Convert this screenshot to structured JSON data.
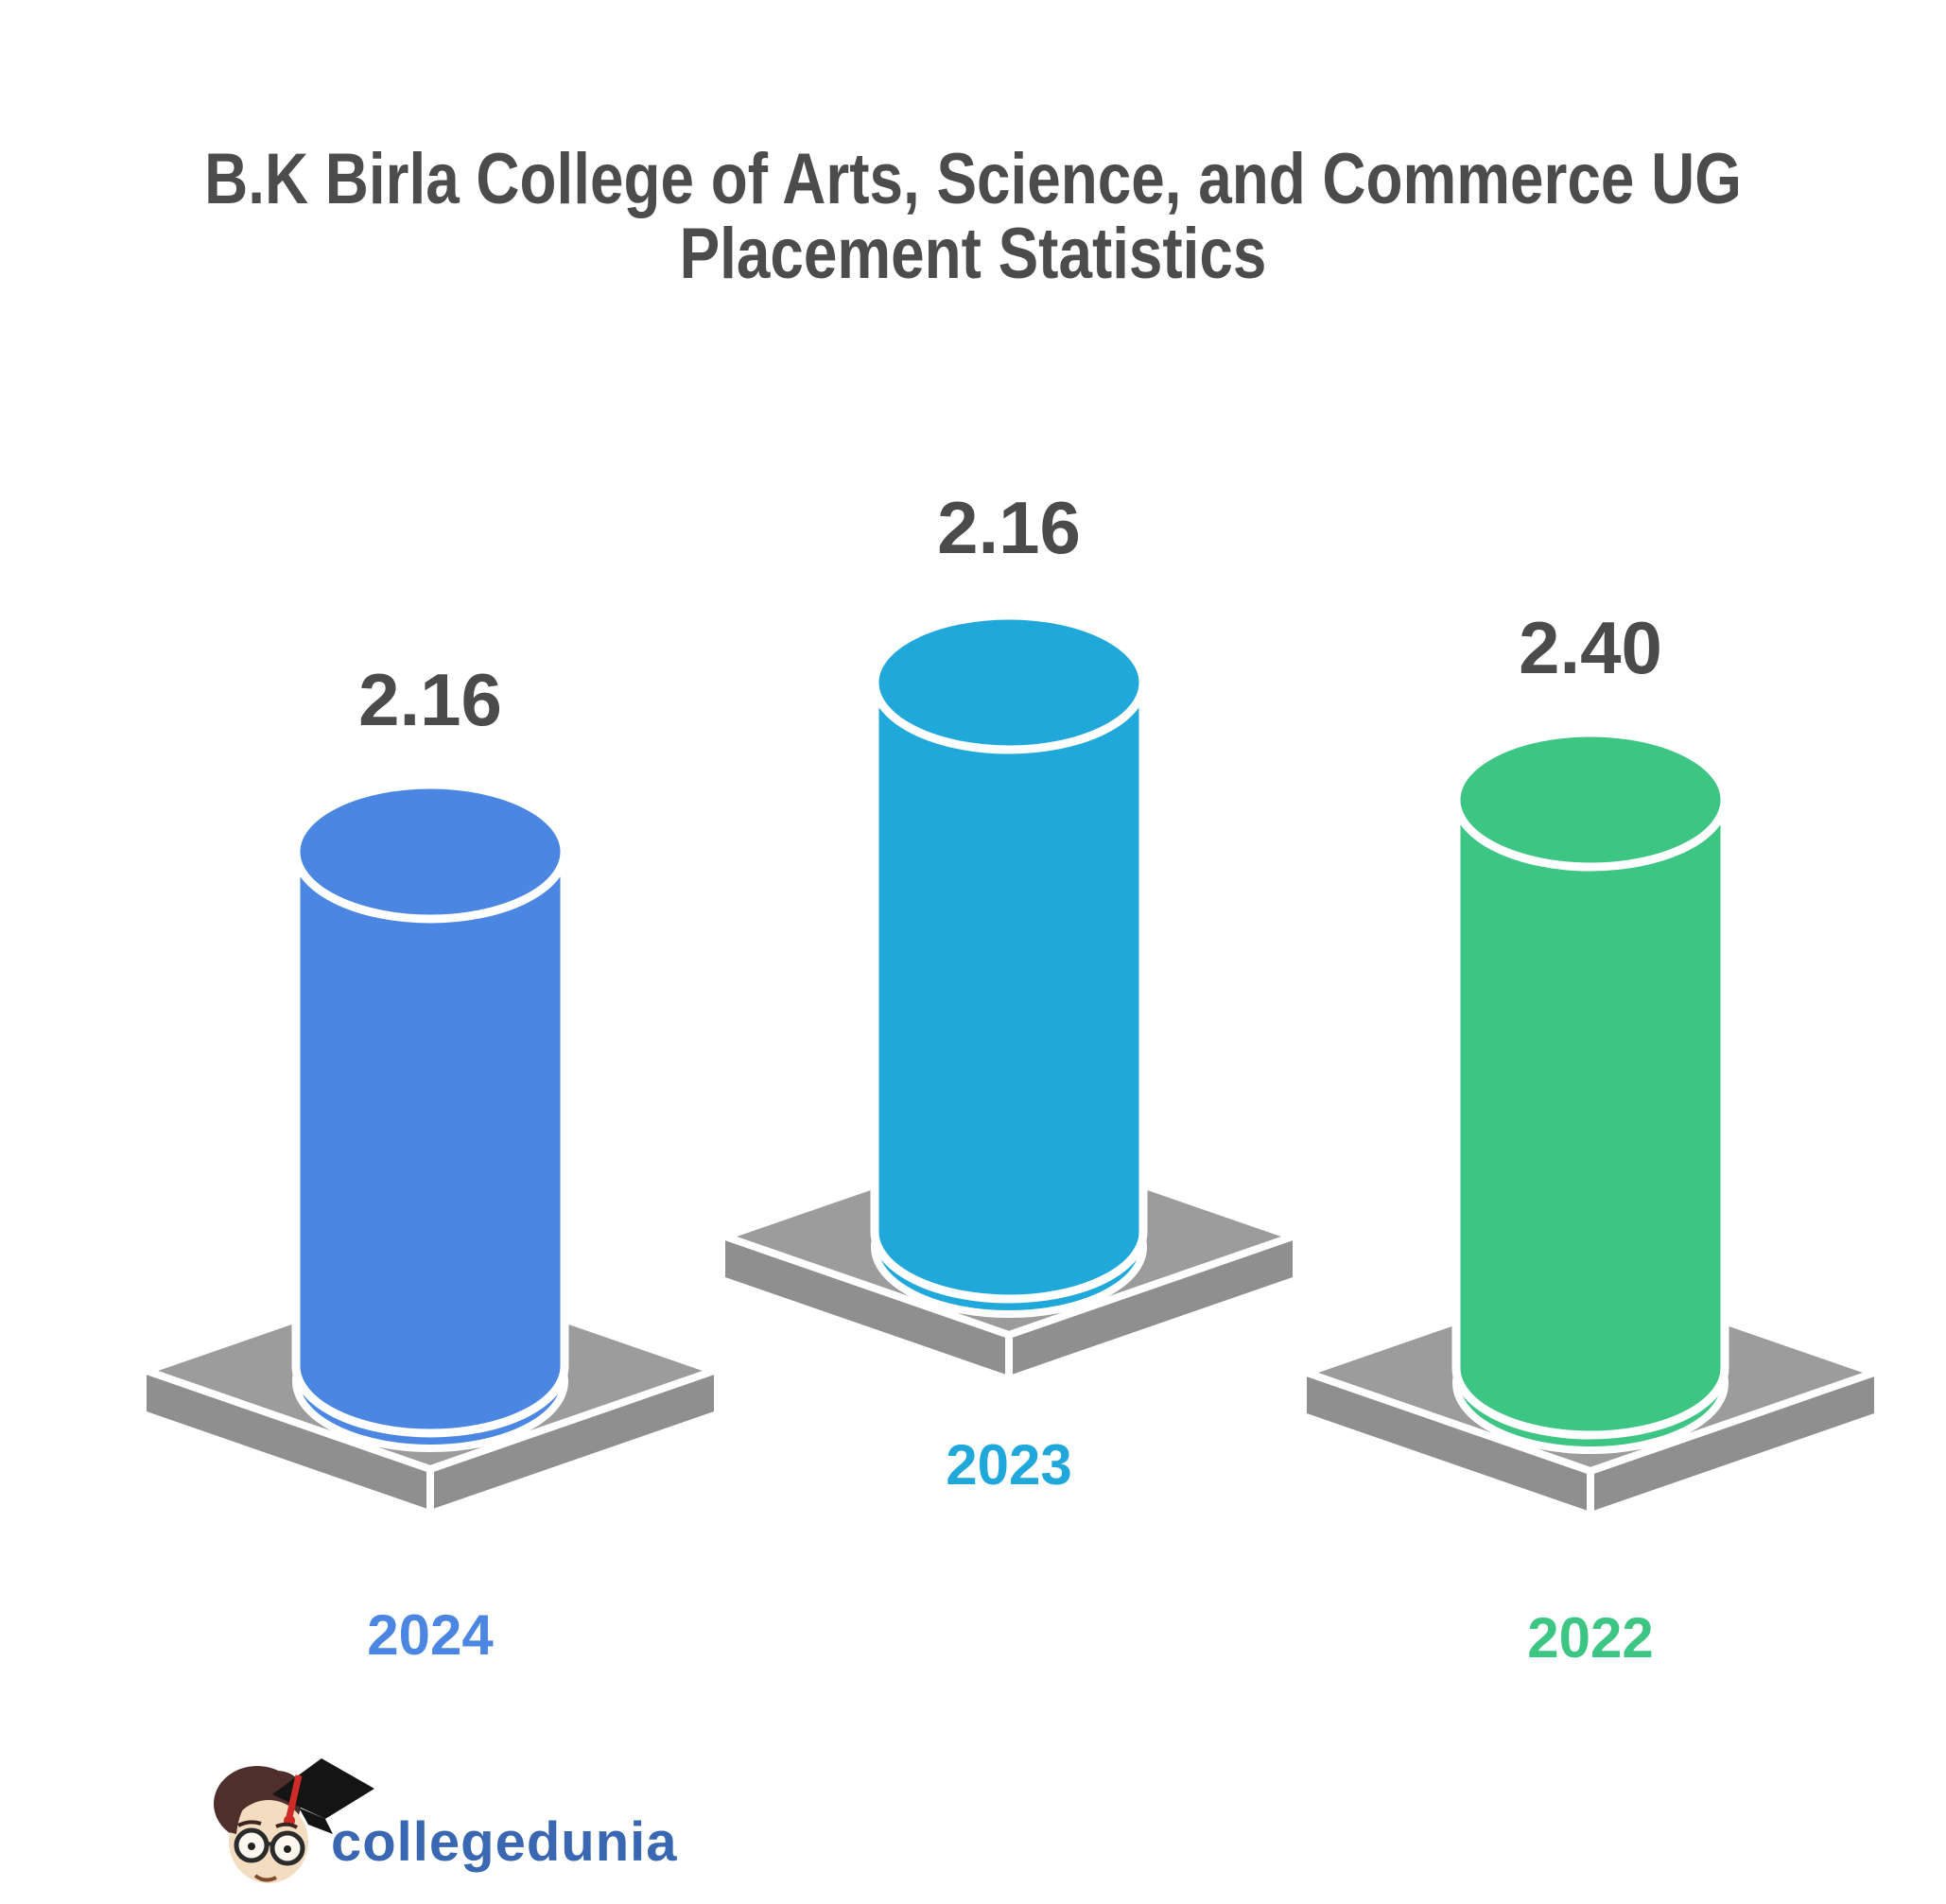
{
  "title": {
    "line1": "B.K Birla College of Arts, Science, and Commerce UG",
    "line2": "Placement Statistics",
    "color": "#4C4C4C"
  },
  "chart_data": {
    "type": "bar",
    "style": "3d-cylinder-infographic",
    "title": "B.K Birla College of Arts, Science, and Commerce UG Placement Statistics",
    "categories": [
      "2024",
      "2023",
      "2022"
    ],
    "values": [
      2.16,
      2.16,
      2.4
    ],
    "value_labels": [
      "2.16",
      "2.16",
      "2.40"
    ],
    "bar_colors": [
      "#4A86E2",
      "#21A8DB",
      "#3DC584"
    ],
    "category_label_colors": [
      "#4A86E2",
      "#21A8DB",
      "#3DC584"
    ],
    "value_label_color": "#4B4B4B",
    "pedestal_top_color": "#9C9C9C",
    "pedestal_side_color": "#8F8F8F",
    "outline_color": "#FFFFFF",
    "background": "#FFFFFF",
    "xlabel": "",
    "ylabel": "",
    "legend": "none",
    "grid": false,
    "axes_hidden": true
  },
  "logo": {
    "text": "collegedunia",
    "text_color": "#3A67B2",
    "mascot": {
      "hair_color": "#4E2F2B",
      "cap_color": "#141414",
      "tassel_color": "#CF2B26",
      "skin_color": "#F4DCC0",
      "glasses_color": "#2B2B2B"
    }
  }
}
